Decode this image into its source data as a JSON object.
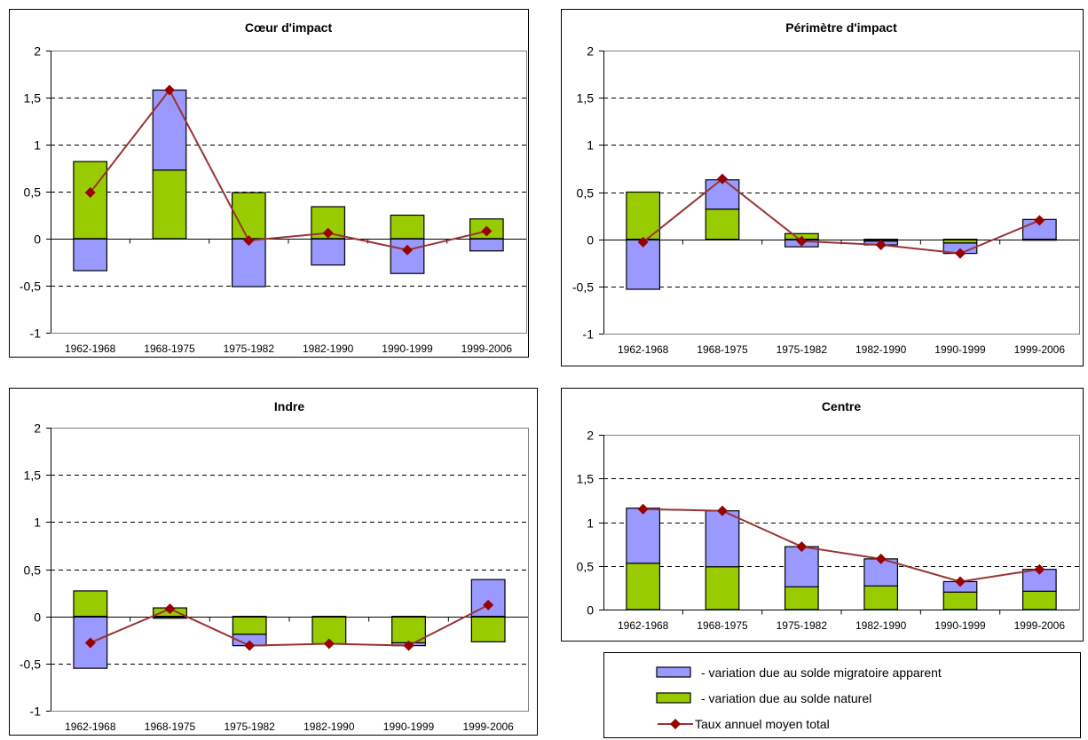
{
  "colors": {
    "naturel": "#99cc00",
    "migratoire": "#9999ff",
    "total_line": "#993333",
    "total_marker": "#990000",
    "grid": "#000000",
    "border": "#000000"
  },
  "legend": {
    "items": [
      {
        "key": "migratoire",
        "label": "- variation due au solde migratoire apparent",
        "kind": "bar"
      },
      {
        "key": "naturel",
        "label": "- variation due au solde naturel",
        "kind": "bar"
      },
      {
        "key": "total",
        "label": "Taux annuel moyen total",
        "kind": "line"
      }
    ]
  },
  "chart_data": [
    {
      "type": "bar",
      "title": "Cœur d'impact",
      "categories": [
        "1962-1968",
        "1968-1975",
        "1975-1982",
        "1982-1990",
        "1990-1999",
        "1999-2006"
      ],
      "ylim": [
        -1,
        2
      ],
      "yticks": [
        "-1",
        "-0,5",
        "0",
        "0,5",
        "1",
        "1,5",
        "2"
      ],
      "grid": true,
      "series": [
        {
          "key": "naturel",
          "kind": "stacked-bar",
          "values": [
            0.82,
            0.73,
            0.49,
            0.34,
            0.25,
            0.21
          ]
        },
        {
          "key": "migratoire",
          "kind": "stacked-bar",
          "values": [
            -0.34,
            0.85,
            -0.51,
            -0.28,
            -0.37,
            -0.13
          ]
        },
        {
          "key": "total",
          "kind": "line",
          "values": [
            0.49,
            1.58,
            -0.02,
            0.06,
            -0.12,
            0.08
          ]
        }
      ]
    },
    {
      "type": "bar",
      "title": "Périmètre d'impact",
      "categories": [
        "1962-1968",
        "1968-1975",
        "1975-1982",
        "1982-1990",
        "1990-1999",
        "1999-2006"
      ],
      "ylim": [
        -1,
        2
      ],
      "yticks": [
        "-1",
        "-0,5",
        "0",
        "0,5",
        "1",
        "1,5",
        "2"
      ],
      "grid": true,
      "series": [
        {
          "key": "naturel",
          "kind": "stacked-bar",
          "values": [
            0.5,
            0.32,
            0.06,
            -0.02,
            -0.04,
            -0.01
          ]
        },
        {
          "key": "migratoire",
          "kind": "stacked-bar",
          "values": [
            -0.53,
            0.31,
            -0.08,
            -0.04,
            -0.11,
            0.21
          ]
        },
        {
          "key": "total",
          "kind": "line",
          "values": [
            -0.03,
            0.64,
            -0.02,
            -0.06,
            -0.15,
            0.2
          ]
        }
      ]
    },
    {
      "type": "bar",
      "title": "Indre",
      "categories": [
        "1962-1968",
        "1968-1975",
        "1975-1982",
        "1982-1990",
        "1990-1999",
        "1999-2006"
      ],
      "ylim": [
        -1,
        2
      ],
      "yticks": [
        "-1",
        "-0,5",
        "0",
        "0,5",
        "1",
        "1,5",
        "2"
      ],
      "grid": true,
      "series": [
        {
          "key": "naturel",
          "kind": "stacked-bar",
          "values": [
            0.27,
            0.09,
            -0.19,
            -0.29,
            -0.28,
            -0.27
          ]
        },
        {
          "key": "migratoire",
          "kind": "stacked-bar",
          "values": [
            -0.55,
            -0.02,
            -0.12,
            0.0,
            -0.03,
            0.39
          ]
        },
        {
          "key": "total",
          "kind": "line",
          "values": [
            -0.28,
            0.08,
            -0.31,
            -0.29,
            -0.31,
            0.12
          ]
        }
      ]
    },
    {
      "type": "bar",
      "title": "Centre",
      "categories": [
        "1962-1968",
        "1968-1975",
        "1975-1982",
        "1982-1990",
        "1990-1999",
        "1999-2006"
      ],
      "ylim": [
        0,
        2
      ],
      "yticks": [
        "0",
        "0,5",
        "1",
        "1,5",
        "2"
      ],
      "grid": true,
      "series": [
        {
          "key": "naturel",
          "kind": "stacked-bar",
          "values": [
            0.53,
            0.49,
            0.26,
            0.27,
            0.2,
            0.21
          ]
        },
        {
          "key": "migratoire",
          "kind": "stacked-bar",
          "values": [
            0.63,
            0.64,
            0.46,
            0.31,
            0.12,
            0.25
          ]
        },
        {
          "key": "total",
          "kind": "line",
          "values": [
            1.15,
            1.13,
            0.72,
            0.58,
            0.32,
            0.46
          ]
        }
      ]
    }
  ]
}
